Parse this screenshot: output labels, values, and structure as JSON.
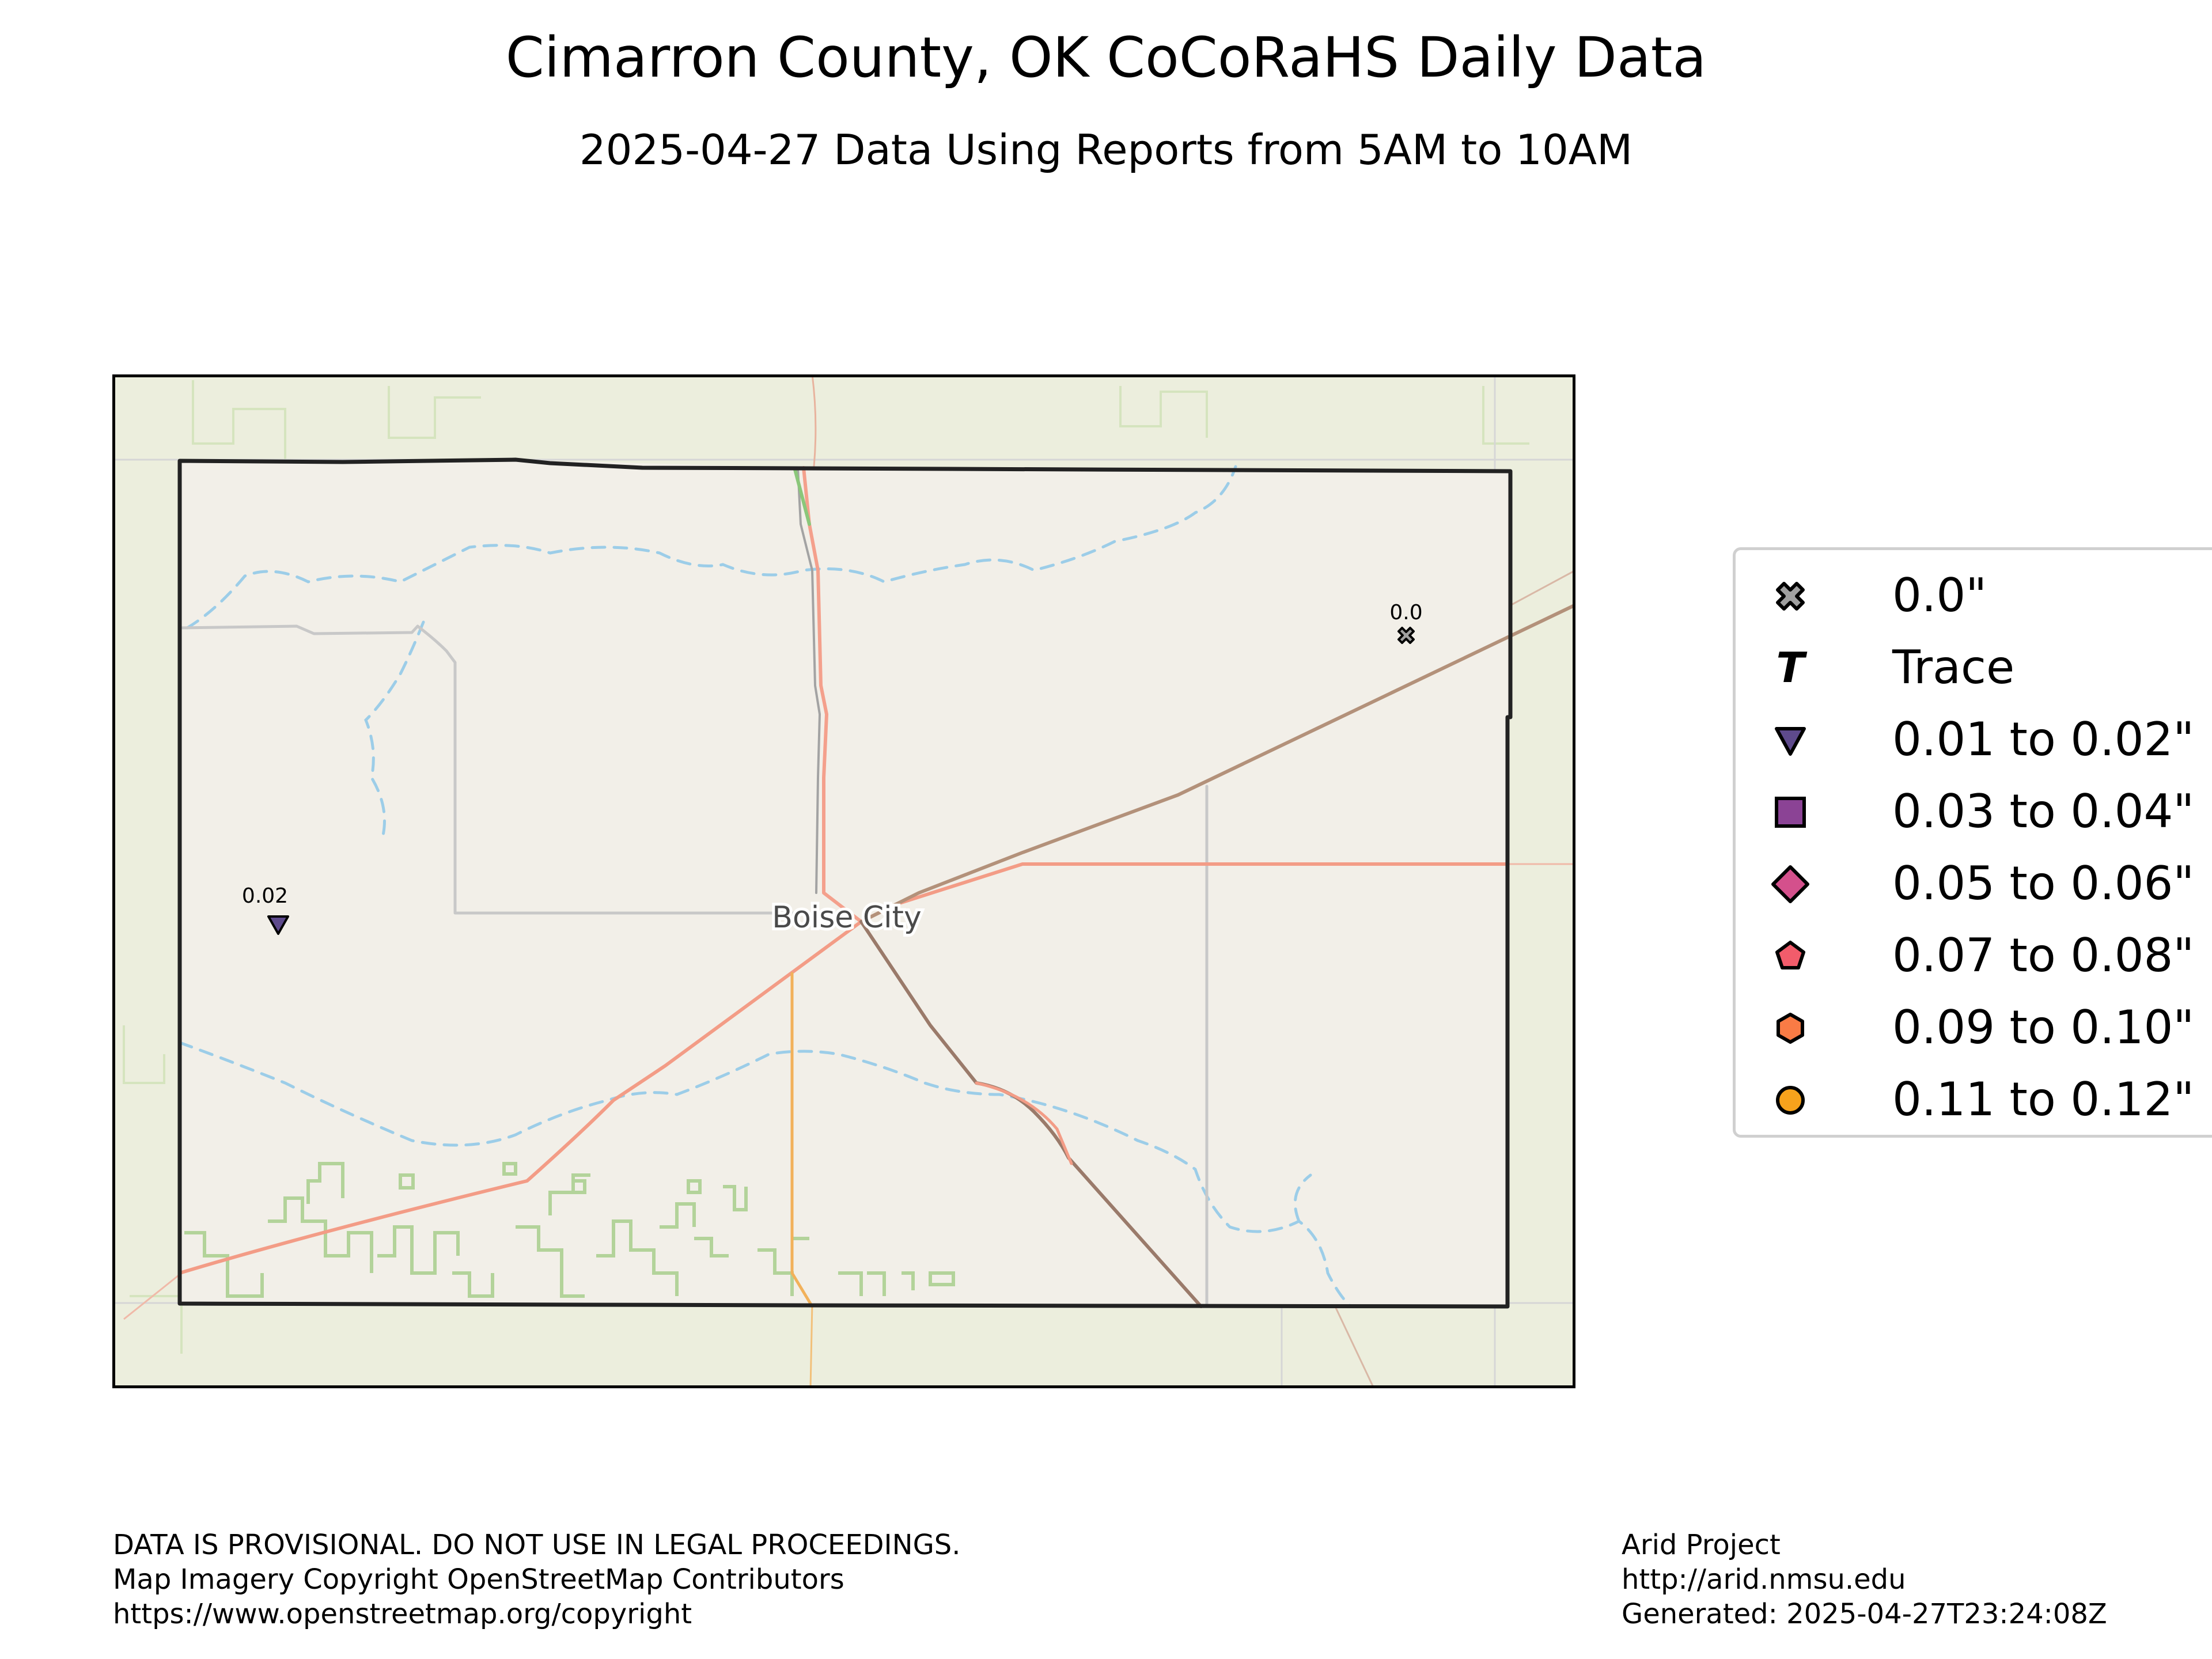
{
  "title": "Cimarron County, OK CoCoRaHS Daily Data",
  "subtitle": "2025-04-27 Data Using Reports from 5AM to 10AM",
  "map": {
    "place_label": "Boise City",
    "stations": [
      {
        "label": "0.0",
        "category": "0.0\""
      },
      {
        "label": "0.02",
        "category": "0.01 to 0.02\""
      }
    ]
  },
  "legend": {
    "items": [
      {
        "label": "0.0\"",
        "marker": "x-cross-icon",
        "color": "#a0a0a0"
      },
      {
        "label": "Trace",
        "marker": "t-letter-icon",
        "color": "#000000"
      },
      {
        "label": "0.01 to 0.02\"",
        "marker": "triangle-down-icon",
        "color": "#5e4a8c"
      },
      {
        "label": "0.03 to 0.04\"",
        "marker": "square-icon",
        "color": "#8b4395"
      },
      {
        "label": "0.05 to 0.06\"",
        "marker": "diamond-icon",
        "color": "#d4508c"
      },
      {
        "label": "0.07 to 0.08\"",
        "marker": "pentagon-icon",
        "color": "#f25c6b"
      },
      {
        "label": "0.09 to 0.10\"",
        "marker": "hexagon-icon",
        "color": "#f97b45"
      },
      {
        "label": "0.11 to 0.12\"",
        "marker": "circle-icon",
        "color": "#f7a21c"
      }
    ]
  },
  "footer": {
    "left": [
      "DATA IS PROVISIONAL. DO NOT USE IN LEGAL PROCEEDINGS.",
      "Map Imagery Copyright OpenStreetMap Contributors",
      "https://www.openstreetmap.org/copyright"
    ],
    "right": [
      "Arid Project",
      "http://arid.nmsu.edu",
      "Generated: 2025-04-27T23:24:08Z"
    ]
  }
}
